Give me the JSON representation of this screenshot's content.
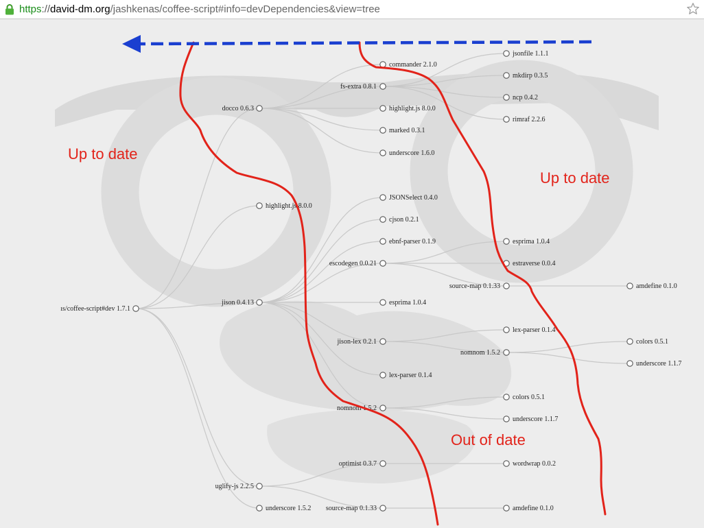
{
  "browser": {
    "url_scheme": "https",
    "url_separator": "://",
    "url_domain": "david-dm.org",
    "url_path": "/jashkenas/coffee-script#info=devDependencies&view=tree",
    "lock_icon": "lock-icon",
    "star_icon": "bookmark-star-icon"
  },
  "colors": {
    "annotation": "#e2231a",
    "arrow": "#1a3fd0",
    "link": "#c8c8c8",
    "node_stroke": "#555555"
  },
  "annotations": {
    "up_to_date_left": "Up to date",
    "up_to_date_right": "Up to date",
    "out_of_date": "Out of date"
  },
  "tree": {
    "root": "ıs/coffee-script#dev 1.7.1",
    "docco": "docco 0.6.3",
    "commander": "commander 2.1.0",
    "fs_extra": "fs-extra 0.8.1",
    "jsonfile": "jsonfile 1.1.1",
    "mkdirp": "mkdirp 0.3.5",
    "ncp": "ncp 0.4.2",
    "rimraf": "rimraf 2.2.6",
    "highlight_docco": "highlight.js 8.0.0",
    "marked": "marked 0.3.1",
    "underscore_docco": "underscore 1.6.0",
    "highlight_root": "highlight.js 8.0.0",
    "jison": "jison 0.4.13",
    "jsonselect": "JSONSelect 0.4.0",
    "cjson": "cjson 0.2.1",
    "ebnf_parser": "ebnf-parser 0.1.9",
    "escodegen": "escodegen 0.0.21",
    "esprima_esc": "esprima 1.0.4",
    "estraverse": "estraverse 0.0.4",
    "source_map_esc": "source-map 0.1.33",
    "amdefine_esc": "amdefine 0.1.0",
    "esprima_jison": "esprima 1.0.4",
    "jison_lex": "jison-lex 0.2.1",
    "lex_parser_jl": "lex-parser 0.1.4",
    "nomnom_jl": "nomnom 1.5.2",
    "colors_jl": "colors 0.5.1",
    "underscore_jl": "underscore 1.1.7",
    "lex_parser_jison": "lex-parser 0.1.4",
    "nomnom_jison": "nomnom 1.5.2",
    "colors_jison": "colors 0.5.1",
    "underscore_jison": "underscore 1.1.7",
    "uglify": "uglify-js 2.2.5",
    "optimist": "optimist 0.3.7",
    "wordwrap": "wordwrap 0.0.2",
    "underscore_root": "underscore 1.5.2",
    "source_map_ug": "source-map 0.1.33",
    "amdefine_ug": "amdefine 0.1.0"
  }
}
